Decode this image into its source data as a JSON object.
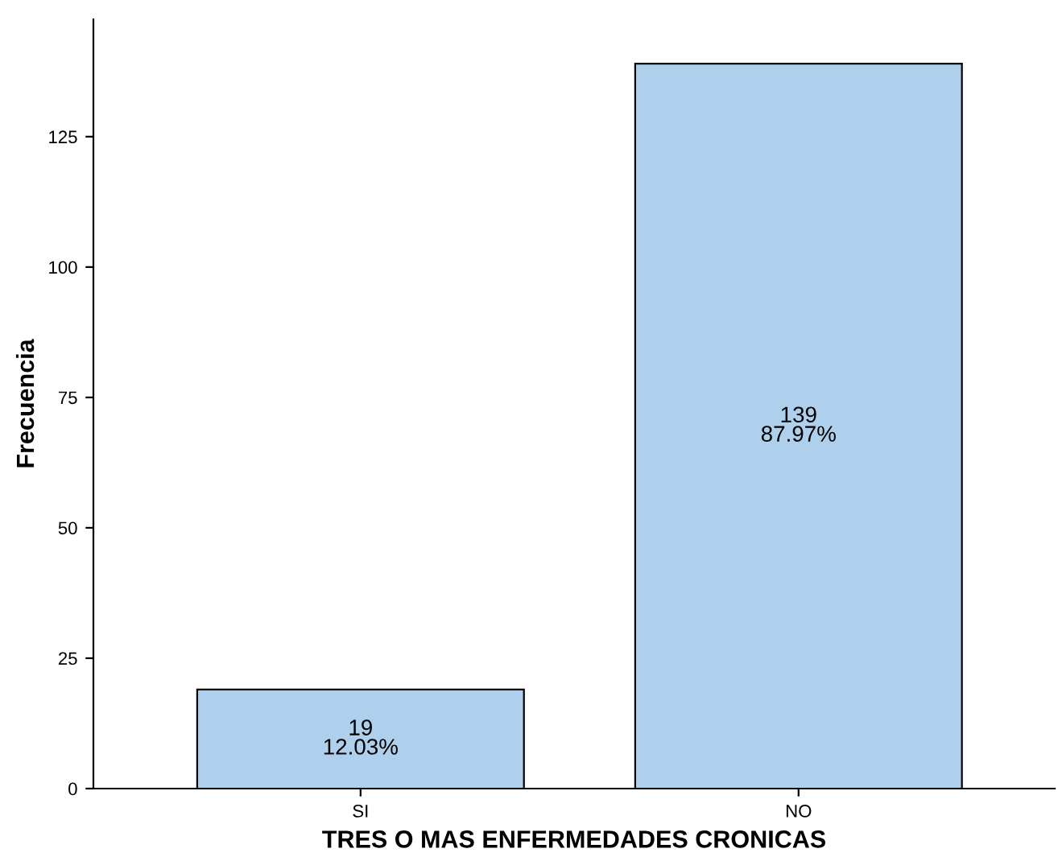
{
  "chart_data": {
    "type": "bar",
    "xlabel": "TRES O MAS ENFERMEDADES CRONICAS",
    "ylabel": "Frecuencia",
    "categories": [
      "SI",
      "NO"
    ],
    "values": [
      19,
      139
    ],
    "color": "#aed0ec",
    "value_labels": [
      "19\n12.03%",
      "139\n87.97%"
    ],
    "ylim": [
      0,
      147.5
    ],
    "yticks": [
      0,
      25,
      50,
      75,
      100,
      125
    ],
    "grid": false,
    "legend": false
  }
}
